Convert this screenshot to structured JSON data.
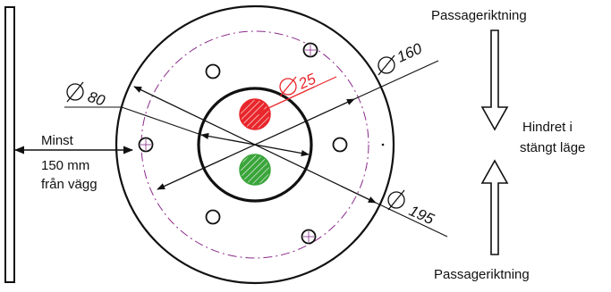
{
  "labels": {
    "top_direction": "Passageriktning",
    "bottom_direction": "Passageriktning",
    "closed_state_line1": "Hindret i",
    "closed_state_line2": "stängt läge",
    "wall_note_line1": "Minst",
    "wall_note_line2": "150 mm",
    "wall_note_line3": "från vägg"
  },
  "dimensions": {
    "d80": "80",
    "d25": "25",
    "d160": "160",
    "d195": "195"
  },
  "colors": {
    "ink": "#111111",
    "red": "#e8262b",
    "green": "#3aa53a",
    "bolt_circle": "#8a2a8a"
  },
  "icons": {
    "diameter": "diameter-symbol-icon",
    "arrow_down": "arrow-down-icon",
    "arrow_up": "arrow-up-icon"
  }
}
